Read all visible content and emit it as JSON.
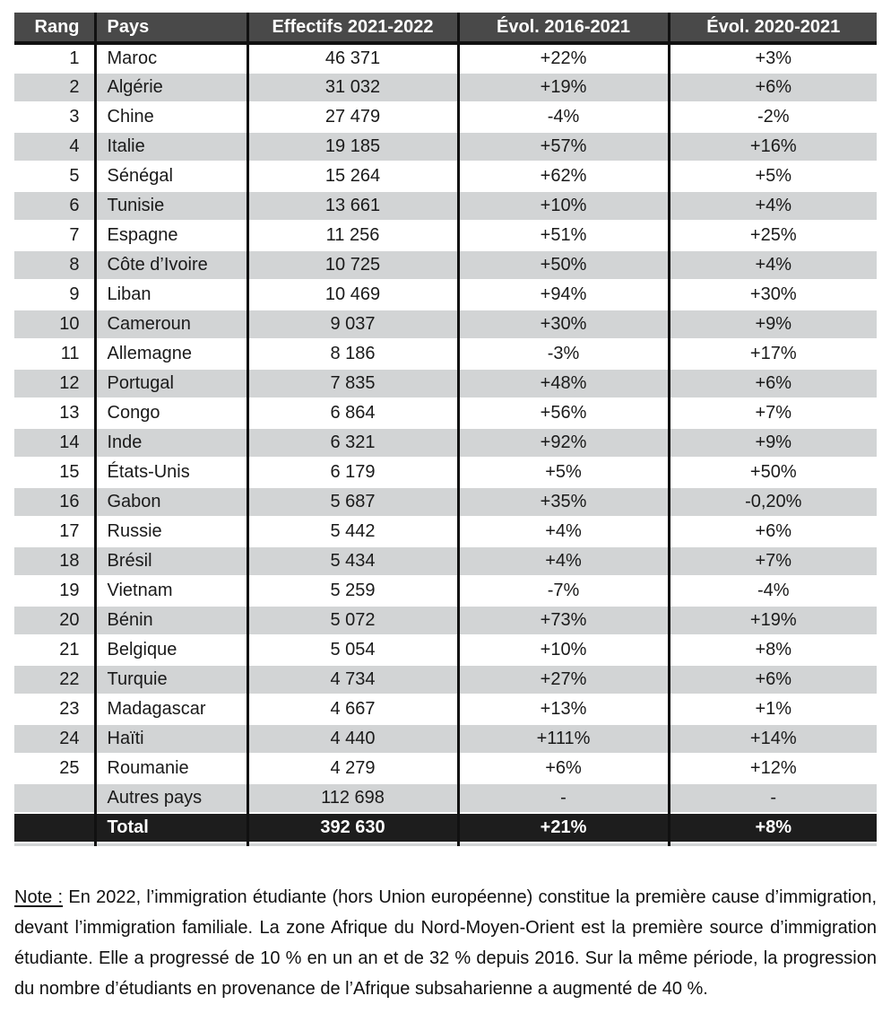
{
  "table": {
    "columns": [
      "Rang",
      "Pays",
      "Effectifs 2021-2022",
      "Évol. 2016-2021",
      "Évol. 2020-2021"
    ],
    "rows": [
      {
        "rang": "1",
        "pays": "Maroc",
        "effectifs": "46 371",
        "evol_2016_2021": "+22%",
        "evol_2020_2021": "+3%"
      },
      {
        "rang": "2",
        "pays": "Algérie",
        "effectifs": "31 032",
        "evol_2016_2021": "+19%",
        "evol_2020_2021": "+6%"
      },
      {
        "rang": "3",
        "pays": "Chine",
        "effectifs": "27 479",
        "evol_2016_2021": "-4%",
        "evol_2020_2021": "-2%"
      },
      {
        "rang": "4",
        "pays": "Italie",
        "effectifs": "19 185",
        "evol_2016_2021": "+57%",
        "evol_2020_2021": "+16%"
      },
      {
        "rang": "5",
        "pays": "Sénégal",
        "effectifs": "15 264",
        "evol_2016_2021": "+62%",
        "evol_2020_2021": "+5%"
      },
      {
        "rang": "6",
        "pays": "Tunisie",
        "effectifs": "13 661",
        "evol_2016_2021": "+10%",
        "evol_2020_2021": "+4%"
      },
      {
        "rang": "7",
        "pays": "Espagne",
        "effectifs": "11 256",
        "evol_2016_2021": "+51%",
        "evol_2020_2021": "+25%"
      },
      {
        "rang": "8",
        "pays": "Côte d’Ivoire",
        "effectifs": "10 725",
        "evol_2016_2021": "+50%",
        "evol_2020_2021": "+4%"
      },
      {
        "rang": "9",
        "pays": "Liban",
        "effectifs": "10 469",
        "evol_2016_2021": "+94%",
        "evol_2020_2021": "+30%"
      },
      {
        "rang": "10",
        "pays": "Cameroun",
        "effectifs": "9 037",
        "evol_2016_2021": "+30%",
        "evol_2020_2021": "+9%"
      },
      {
        "rang": "11",
        "pays": "Allemagne",
        "effectifs": "8 186",
        "evol_2016_2021": "-3%",
        "evol_2020_2021": "+17%"
      },
      {
        "rang": "12",
        "pays": "Portugal",
        "effectifs": "7 835",
        "evol_2016_2021": "+48%",
        "evol_2020_2021": "+6%"
      },
      {
        "rang": "13",
        "pays": "Congo",
        "effectifs": "6 864",
        "evol_2016_2021": "+56%",
        "evol_2020_2021": "+7%"
      },
      {
        "rang": "14",
        "pays": "Inde",
        "effectifs": "6 321",
        "evol_2016_2021": "+92%",
        "evol_2020_2021": "+9%"
      },
      {
        "rang": "15",
        "pays": "États-Unis",
        "effectifs": "6 179",
        "evol_2016_2021": "+5%",
        "evol_2020_2021": "+50%"
      },
      {
        "rang": "16",
        "pays": "Gabon",
        "effectifs": "5 687",
        "evol_2016_2021": "+35%",
        "evol_2020_2021": "-0,20%"
      },
      {
        "rang": "17",
        "pays": "Russie",
        "effectifs": "5 442",
        "evol_2016_2021": "+4%",
        "evol_2020_2021": "+6%"
      },
      {
        "rang": "18",
        "pays": "Brésil",
        "effectifs": "5 434",
        "evol_2016_2021": "+4%",
        "evol_2020_2021": "+7%"
      },
      {
        "rang": "19",
        "pays": "Vietnam",
        "effectifs": "5 259",
        "evol_2016_2021": "-7%",
        "evol_2020_2021": "-4%"
      },
      {
        "rang": "20",
        "pays": "Bénin",
        "effectifs": "5 072",
        "evol_2016_2021": "+73%",
        "evol_2020_2021": "+19%"
      },
      {
        "rang": "21",
        "pays": "Belgique",
        "effectifs": "5 054",
        "evol_2016_2021": "+10%",
        "evol_2020_2021": "+8%"
      },
      {
        "rang": "22",
        "pays": "Turquie",
        "effectifs": "4 734",
        "evol_2016_2021": "+27%",
        "evol_2020_2021": "+6%"
      },
      {
        "rang": "23",
        "pays": "Madagascar",
        "effectifs": "4 667",
        "evol_2016_2021": "+13%",
        "evol_2020_2021": "+1%"
      },
      {
        "rang": "24",
        "pays": "Haïti",
        "effectifs": "4 440",
        "evol_2016_2021": "+111%",
        "evol_2020_2021": "+14%"
      },
      {
        "rang": "25",
        "pays": "Roumanie",
        "effectifs": "4 279",
        "evol_2016_2021": "+6%",
        "evol_2020_2021": "+12%"
      },
      {
        "rang": "",
        "pays": "Autres pays",
        "effectifs": "112 698",
        "evol_2016_2021": "-",
        "evol_2020_2021": "-"
      }
    ],
    "total": {
      "label": "Total",
      "effectifs": "392 630",
      "evol_2016_2021": "+21%",
      "evol_2020_2021": "+8%"
    }
  },
  "note": {
    "label": "Note :",
    "text": "En 2022, l’immigration étudiante (hors Union européenne) constitue la première cause d’immigration, devant l’immigration familiale. La zone Afrique du Nord-Moyen-Orient est la première source d’immigration étudiante. Elle a progressé de 10 % en un an et de 32 % depuis 2016. Sur la même période, la progression du nombre d’étudiants en provenance de l’Afrique subsaharienne a augmenté de 40 %."
  },
  "colors": {
    "header_bg": "#494949",
    "row_alt_bg": "#d2d4d5",
    "total_row_bg": "#1d1d1d",
    "text": "#1a1a1a"
  }
}
